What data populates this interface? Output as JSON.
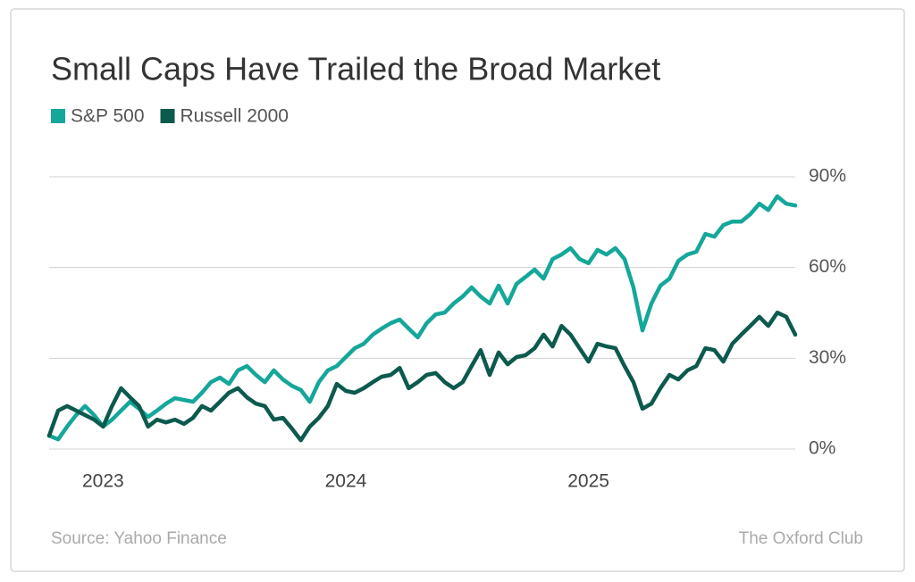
{
  "chart_data": {
    "type": "line",
    "title": "Small Caps Have Trailed the Broad Market",
    "source": "Source: Yahoo Finance",
    "credit": "The Oxford Club",
    "categories": [
      null,
      null,
      null,
      null,
      null,
      null,
      "2023",
      null,
      null,
      null,
      null,
      null,
      null,
      null,
      null,
      null,
      null,
      null,
      null,
      null,
      null,
      null,
      null,
      null,
      null,
      null,
      null,
      null,
      null,
      null,
      null,
      null,
      null,
      "2024",
      null,
      null,
      null,
      null,
      null,
      null,
      null,
      null,
      null,
      null,
      null,
      null,
      null,
      null,
      null,
      null,
      null,
      null,
      null,
      null,
      null,
      null,
      null,
      null,
      null,
      null,
      "2025",
      null,
      null,
      null,
      null,
      null,
      null,
      null,
      null,
      null,
      null,
      null,
      null,
      null,
      null,
      null,
      null,
      null,
      null,
      null,
      null,
      null,
      null,
      null
    ],
    "series": [
      {
        "name": "S&P 500",
        "color": "#14a79a",
        "values": [
          4.4,
          3.2,
          7.4,
          11.2,
          14.2,
          11.2,
          7.4,
          9.7,
          12.7,
          15.6,
          13.3,
          10.6,
          12.7,
          15,
          16.8,
          16.2,
          15.6,
          18.6,
          22.1,
          23.6,
          21.5,
          26,
          27.4,
          24.5,
          22.1,
          26,
          23,
          20.9,
          19.5,
          15.6,
          22.1,
          26,
          27.4,
          30.4,
          33.3,
          34.8,
          37.8,
          39.8,
          41.6,
          42.8,
          39.8,
          36.9,
          41.6,
          44.5,
          45.1,
          48.1,
          50.4,
          53.4,
          50.4,
          48.1,
          54,
          48.1,
          54.6,
          56.9,
          59.3,
          56.3,
          62.8,
          64.3,
          66.4,
          62.8,
          61.4,
          65.8,
          64.3,
          66.4,
          62.8,
          53.4,
          39.2,
          48.1,
          54,
          56.3,
          62.2,
          64.3,
          65.2,
          71.1,
          70.2,
          74,
          75.2,
          75.2,
          77.6,
          81.1,
          79,
          83.5,
          81.1,
          80.5
        ]
      },
      {
        "name": "Russell 2000",
        "color": "#0c5a4d",
        "values": [
          4.4,
          12.7,
          14.2,
          12.7,
          11.2,
          9.7,
          7.4,
          14.2,
          20.1,
          17.1,
          14.2,
          7.4,
          9.7,
          8.8,
          9.7,
          8.3,
          10.3,
          14.2,
          12.7,
          15.6,
          18.6,
          20.1,
          17.1,
          15,
          14.2,
          9.7,
          10.3,
          6.8,
          2.9,
          7.4,
          10.3,
          14.2,
          21.5,
          19.2,
          18.6,
          20.1,
          22.1,
          23.9,
          24.5,
          26.8,
          20.1,
          22.1,
          24.5,
          25.1,
          22.1,
          20.1,
          22.1,
          27.4,
          32.7,
          24.5,
          31.9,
          28,
          30.4,
          31,
          33.3,
          37.8,
          33.9,
          40.7,
          37.8,
          33.3,
          28.9,
          34.8,
          33.9,
          33.3,
          27.4,
          22.1,
          13.3,
          15,
          20.1,
          24.5,
          23,
          26,
          27.4,
          33.3,
          32.7,
          28.9,
          34.8,
          37.8,
          40.7,
          43.7,
          40.7,
          45.1,
          43.7,
          37.8
        ]
      }
    ],
    "ylim": [
      0,
      90
    ],
    "yticks": [
      {
        "value": 0,
        "label": "0%"
      },
      {
        "value": 30,
        "label": "30%"
      },
      {
        "value": 60,
        "label": "60%"
      },
      {
        "value": 90,
        "label": "90%"
      }
    ],
    "grid": true,
    "legend": "top-left"
  }
}
